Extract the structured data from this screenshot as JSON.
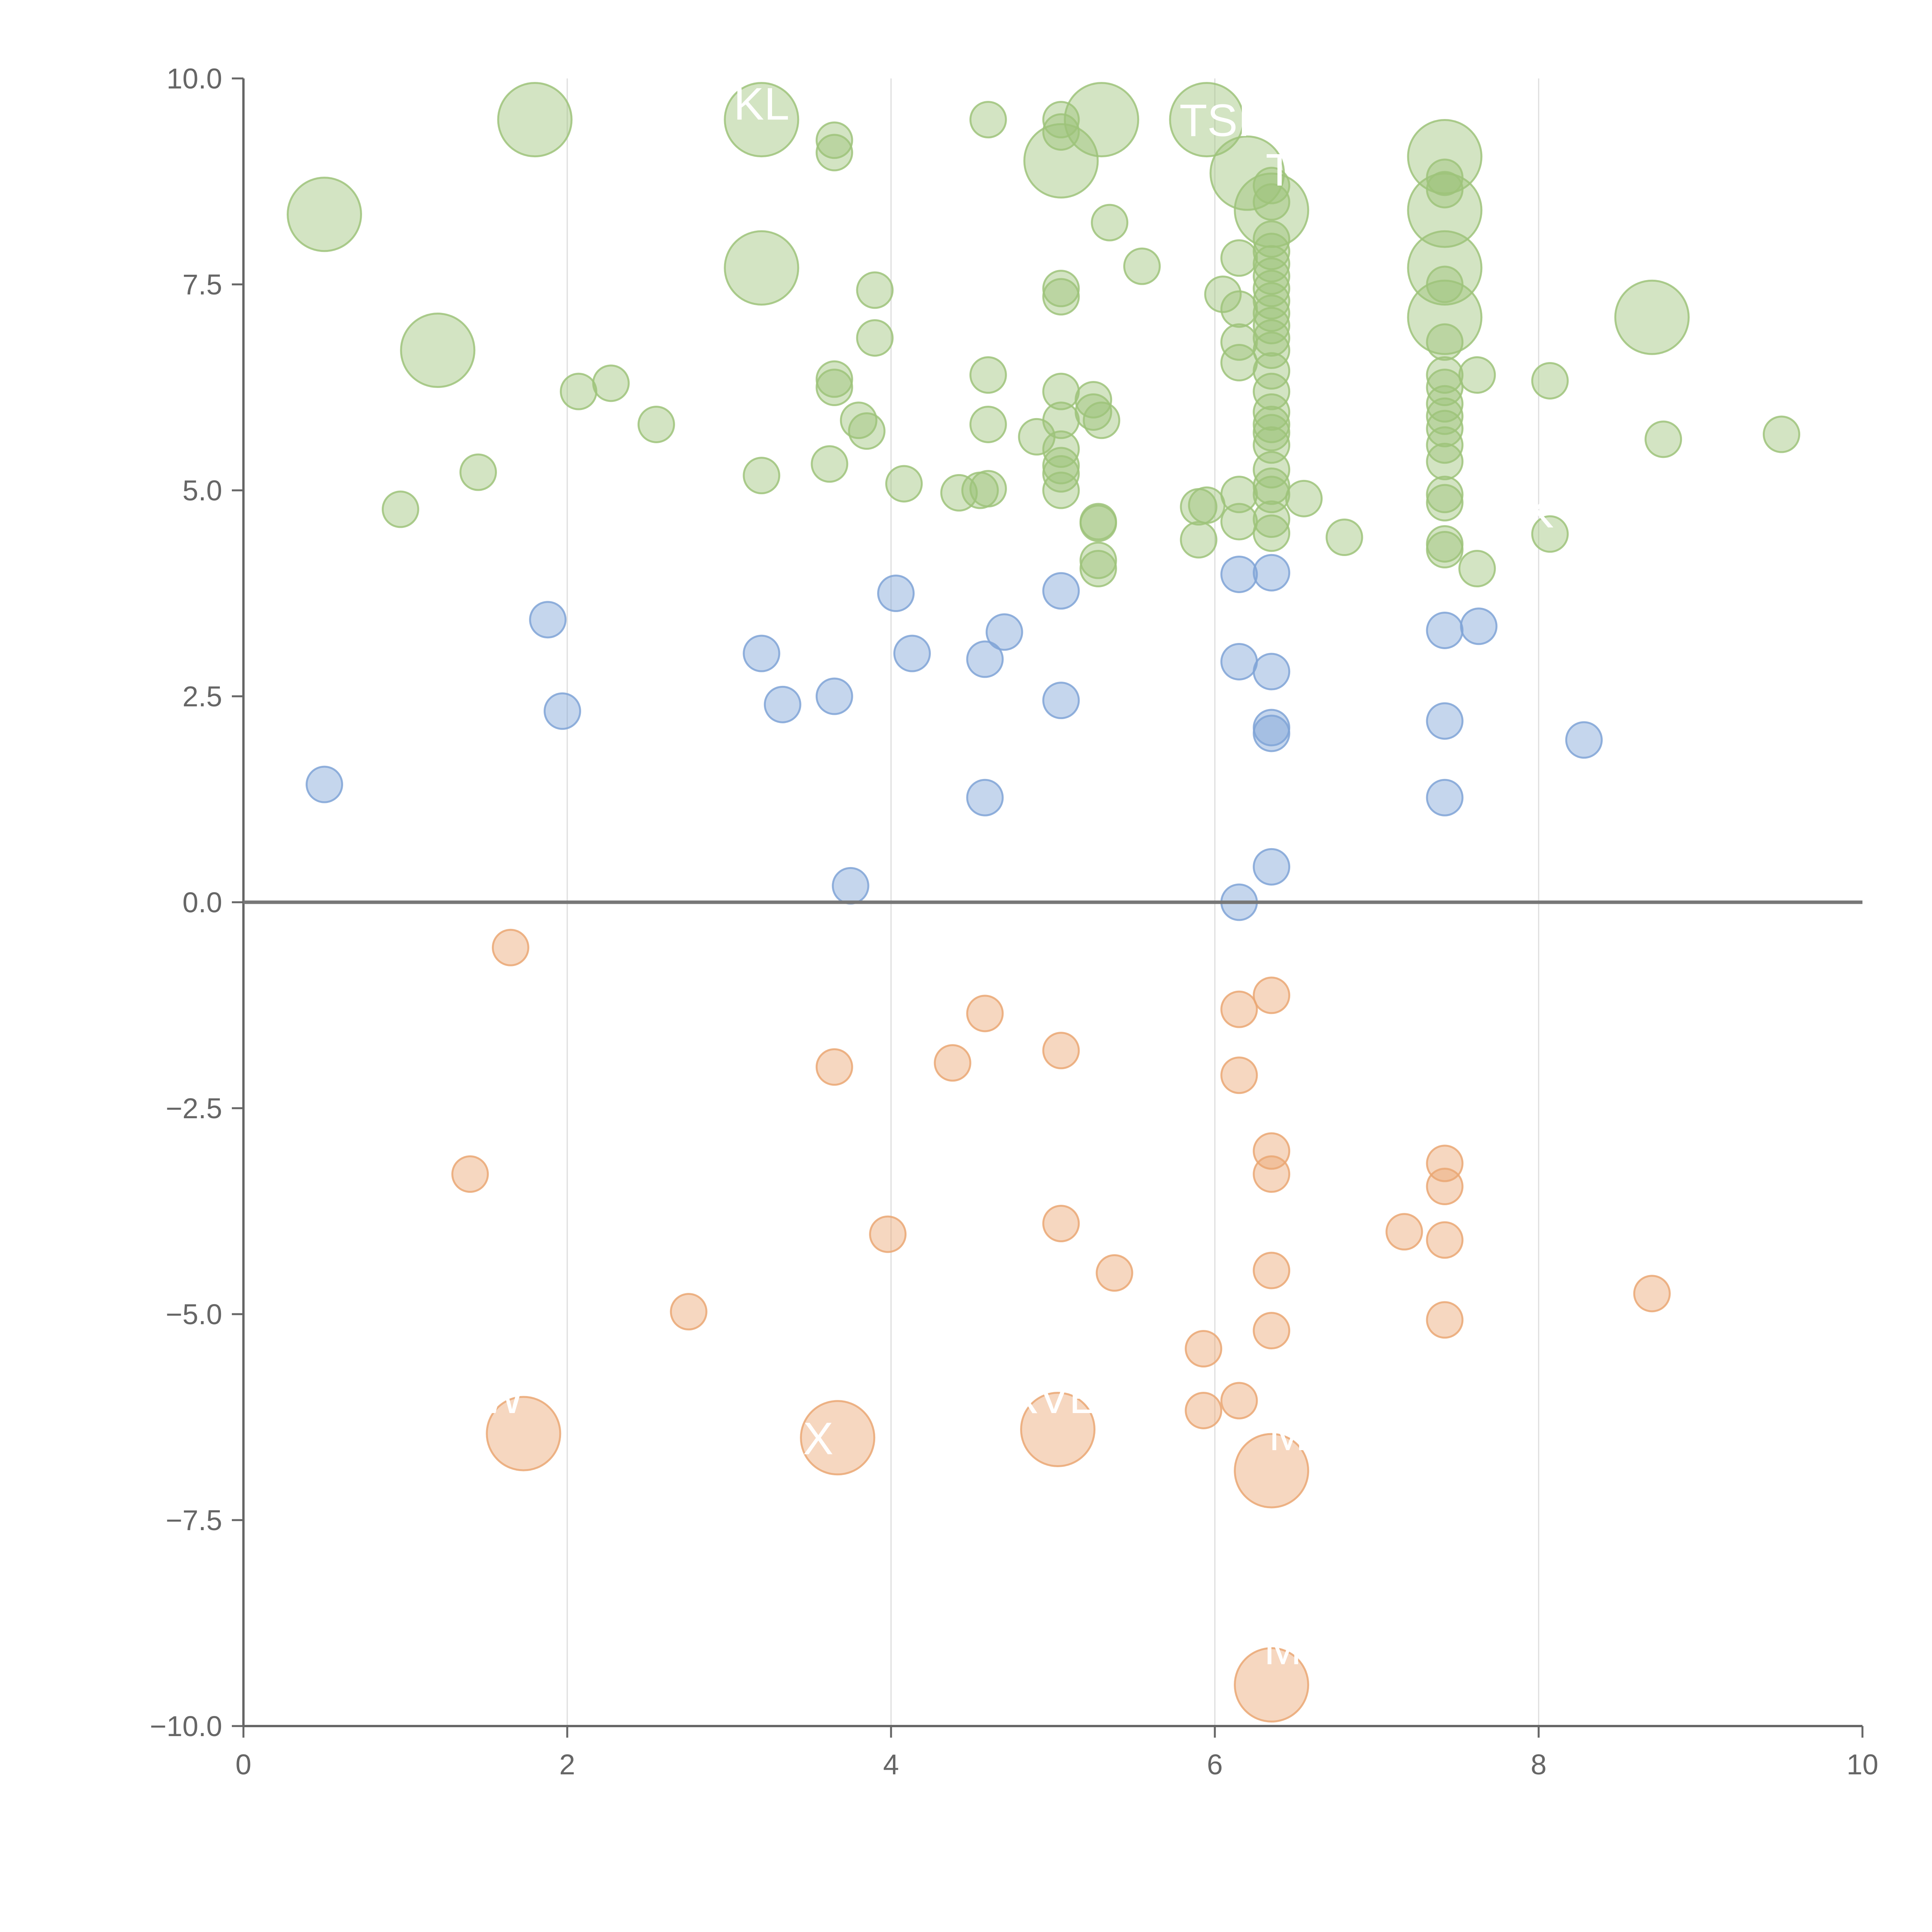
{
  "chart_data": {
    "type": "scatter",
    "title": "",
    "xlabel": "",
    "ylabel": "",
    "xlim": [
      0,
      10
    ],
    "ylim": [
      -10,
      10
    ],
    "grid": "vertical",
    "legend": "none",
    "x_ticks": [
      "0",
      "2",
      "4",
      "6",
      "8",
      "10"
    ],
    "y_ticks": [
      "10.0",
      "7.5",
      "5.0",
      "2.5",
      "0.0",
      "−2.5",
      "−5.0",
      "−7.5",
      "−10.0"
    ],
    "colors": {
      "high": "#9dc37a",
      "mid": "#7fa3d6",
      "low": "#eaa773",
      "zero_line": "#777777",
      "axis": "#666666",
      "grid": "#dddddd",
      "label": "#ffffff"
    },
    "series": [
      {
        "name": "high",
        "color": "#9dc37a",
        "points": [
          {
            "x": 1.8,
            "y": 9.5,
            "size": 3
          },
          {
            "x": 3.2,
            "y": 9.5,
            "size": 3
          },
          {
            "x": 5.3,
            "y": 9.5,
            "size": 3
          },
          {
            "x": 5.95,
            "y": 9.5,
            "size": 3
          },
          {
            "x": 0.5,
            "y": 8.35,
            "size": 3
          },
          {
            "x": 5.05,
            "y": 9.0,
            "size": 3
          },
          {
            "x": 6.2,
            "y": 8.85,
            "size": 3
          },
          {
            "x": 7.42,
            "y": 9.05,
            "size": 3
          },
          {
            "x": 6.35,
            "y": 8.4,
            "size": 3
          },
          {
            "x": 7.42,
            "y": 8.4,
            "size": 3
          },
          {
            "x": 3.2,
            "y": 7.7,
            "size": 3
          },
          {
            "x": 7.42,
            "y": 7.7,
            "size": 3
          },
          {
            "x": 7.42,
            "y": 7.1,
            "size": 3
          },
          {
            "x": 8.7,
            "y": 7.1,
            "size": 3
          },
          {
            "x": 1.2,
            "y": 6.7,
            "size": 3
          },
          {
            "x": 3.65,
            "y": 9.25,
            "size": 1
          },
          {
            "x": 3.65,
            "y": 9.1,
            "size": 1
          },
          {
            "x": 4.6,
            "y": 9.5,
            "size": 1
          },
          {
            "x": 5.05,
            "y": 9.5,
            "size": 1
          },
          {
            "x": 5.05,
            "y": 9.35,
            "size": 1
          },
          {
            "x": 7.42,
            "y": 8.8,
            "size": 1
          },
          {
            "x": 7.42,
            "y": 8.65,
            "size": 1
          },
          {
            "x": 6.35,
            "y": 8.7,
            "size": 1
          },
          {
            "x": 6.35,
            "y": 8.5,
            "size": 1
          },
          {
            "x": 5.35,
            "y": 8.25,
            "size": 1
          },
          {
            "x": 5.55,
            "y": 7.72,
            "size": 1
          },
          {
            "x": 6.15,
            "y": 7.82,
            "size": 1
          },
          {
            "x": 3.9,
            "y": 7.43,
            "size": 1
          },
          {
            "x": 5.05,
            "y": 7.45,
            "size": 1
          },
          {
            "x": 5.05,
            "y": 7.35,
            "size": 1
          },
          {
            "x": 6.05,
            "y": 7.38,
            "size": 1
          },
          {
            "x": 6.15,
            "y": 7.2,
            "size": 1
          },
          {
            "x": 7.42,
            "y": 7.5,
            "size": 1
          },
          {
            "x": 6.35,
            "y": 8.05,
            "size": 1
          },
          {
            "x": 6.35,
            "y": 7.9,
            "size": 1
          },
          {
            "x": 6.35,
            "y": 7.75,
            "size": 1
          },
          {
            "x": 6.35,
            "y": 7.6,
            "size": 1
          },
          {
            "x": 6.35,
            "y": 7.45,
            "size": 1
          },
          {
            "x": 6.35,
            "y": 7.3,
            "size": 1
          },
          {
            "x": 6.35,
            "y": 7.15,
            "size": 1
          },
          {
            "x": 6.35,
            "y": 7.0,
            "size": 1
          },
          {
            "x": 6.35,
            "y": 6.85,
            "size": 1
          },
          {
            "x": 6.35,
            "y": 6.7,
            "size": 1
          },
          {
            "x": 6.15,
            "y": 6.8,
            "size": 1
          },
          {
            "x": 6.15,
            "y": 6.55,
            "size": 1
          },
          {
            "x": 3.9,
            "y": 6.85,
            "size": 1
          },
          {
            "x": 7.42,
            "y": 6.8,
            "size": 1
          },
          {
            "x": 6.35,
            "y": 6.45,
            "size": 1
          },
          {
            "x": 6.35,
            "y": 6.2,
            "size": 1
          },
          {
            "x": 7.42,
            "y": 6.4,
            "size": 1
          },
          {
            "x": 7.42,
            "y": 6.25,
            "size": 1
          },
          {
            "x": 7.62,
            "y": 6.4,
            "size": 1
          },
          {
            "x": 8.07,
            "y": 6.33,
            "size": 1
          },
          {
            "x": 2.07,
            "y": 6.2,
            "size": 1
          },
          {
            "x": 2.27,
            "y": 6.3,
            "size": 1
          },
          {
            "x": 3.65,
            "y": 6.35,
            "size": 1
          },
          {
            "x": 3.65,
            "y": 6.25,
            "size": 1
          },
          {
            "x": 4.6,
            "y": 6.4,
            "size": 1
          },
          {
            "x": 5.05,
            "y": 6.2,
            "size": 1
          },
          {
            "x": 5.25,
            "y": 6.1,
            "size": 1
          },
          {
            "x": 5.25,
            "y": 5.95,
            "size": 1
          },
          {
            "x": 5.3,
            "y": 5.85,
            "size": 1
          },
          {
            "x": 3.8,
            "y": 5.85,
            "size": 1
          },
          {
            "x": 3.85,
            "y": 5.72,
            "size": 1
          },
          {
            "x": 2.55,
            "y": 5.8,
            "size": 1
          },
          {
            "x": 4.6,
            "y": 5.8,
            "size": 1
          },
          {
            "x": 4.9,
            "y": 5.65,
            "size": 1
          },
          {
            "x": 5.05,
            "y": 5.85,
            "size": 1
          },
          {
            "x": 5.05,
            "y": 5.5,
            "size": 1
          },
          {
            "x": 5.05,
            "y": 5.3,
            "size": 1
          },
          {
            "x": 5.05,
            "y": 5.2,
            "size": 1
          },
          {
            "x": 6.35,
            "y": 5.95,
            "size": 1
          },
          {
            "x": 6.35,
            "y": 5.8,
            "size": 1
          },
          {
            "x": 6.35,
            "y": 5.7,
            "size": 1
          },
          {
            "x": 6.35,
            "y": 5.55,
            "size": 1
          },
          {
            "x": 7.42,
            "y": 6.05,
            "size": 1
          },
          {
            "x": 7.42,
            "y": 5.9,
            "size": 1
          },
          {
            "x": 7.42,
            "y": 5.75,
            "size": 1
          },
          {
            "x": 7.42,
            "y": 5.55,
            "size": 1
          },
          {
            "x": 7.42,
            "y": 5.35,
            "size": 1
          },
          {
            "x": 8.77,
            "y": 5.62,
            "size": 1
          },
          {
            "x": 9.5,
            "y": 5.68,
            "size": 1
          },
          {
            "x": 1.45,
            "y": 5.22,
            "size": 1
          },
          {
            "x": 0.97,
            "y": 4.77,
            "size": 1
          },
          {
            "x": 3.2,
            "y": 5.18,
            "size": 1
          },
          {
            "x": 3.62,
            "y": 5.32,
            "size": 1
          },
          {
            "x": 4.08,
            "y": 5.08,
            "size": 1
          },
          {
            "x": 4.42,
            "y": 4.97,
            "size": 1
          },
          {
            "x": 4.55,
            "y": 5.0,
            "size": 1
          },
          {
            "x": 4.6,
            "y": 5.02,
            "size": 1
          },
          {
            "x": 5.05,
            "y": 5.0,
            "size": 1
          },
          {
            "x": 6.35,
            "y": 5.25,
            "size": 1
          },
          {
            "x": 6.35,
            "y": 5.05,
            "size": 1
          },
          {
            "x": 6.35,
            "y": 4.95,
            "size": 1
          },
          {
            "x": 6.15,
            "y": 4.95,
            "size": 1
          },
          {
            "x": 5.9,
            "y": 4.8,
            "size": 1
          },
          {
            "x": 5.95,
            "y": 4.82,
            "size": 1
          },
          {
            "x": 6.55,
            "y": 4.9,
            "size": 1
          },
          {
            "x": 7.42,
            "y": 4.95,
            "size": 1
          },
          {
            "x": 7.42,
            "y": 4.85,
            "size": 1
          },
          {
            "x": 5.28,
            "y": 4.62,
            "size": 1
          },
          {
            "x": 5.28,
            "y": 4.6,
            "size": 1
          },
          {
            "x": 6.15,
            "y": 4.62,
            "size": 1
          },
          {
            "x": 6.35,
            "y": 4.65,
            "size": 1
          },
          {
            "x": 6.35,
            "y": 4.48,
            "size": 1
          },
          {
            "x": 5.9,
            "y": 4.4,
            "size": 1
          },
          {
            "x": 6.8,
            "y": 4.43,
            "size": 1
          },
          {
            "x": 8.07,
            "y": 4.47,
            "size": 1
          },
          {
            "x": 7.42,
            "y": 4.35,
            "size": 1
          },
          {
            "x": 7.42,
            "y": 4.28,
            "size": 1
          },
          {
            "x": 5.28,
            "y": 4.15,
            "size": 1
          },
          {
            "x": 5.28,
            "y": 4.05,
            "size": 1
          },
          {
            "x": 7.62,
            "y": 4.05,
            "size": 1
          }
        ]
      },
      {
        "name": "mid",
        "color": "#7fa3d6",
        "points": [
          {
            "x": 4.03,
            "y": 3.75,
            "size": 1
          },
          {
            "x": 5.05,
            "y": 3.78,
            "size": 1
          },
          {
            "x": 6.15,
            "y": 3.98,
            "size": 1
          },
          {
            "x": 6.35,
            "y": 4.0,
            "size": 1
          },
          {
            "x": 1.88,
            "y": 3.43,
            "size": 1
          },
          {
            "x": 4.7,
            "y": 3.28,
            "size": 1
          },
          {
            "x": 7.42,
            "y": 3.3,
            "size": 1
          },
          {
            "x": 7.63,
            "y": 3.35,
            "size": 1
          },
          {
            "x": 3.2,
            "y": 3.02,
            "size": 1
          },
          {
            "x": 4.13,
            "y": 3.02,
            "size": 1
          },
          {
            "x": 4.58,
            "y": 2.95,
            "size": 1
          },
          {
            "x": 6.15,
            "y": 2.92,
            "size": 1
          },
          {
            "x": 6.35,
            "y": 2.8,
            "size": 1
          },
          {
            "x": 3.65,
            "y": 2.5,
            "size": 1
          },
          {
            "x": 3.33,
            "y": 2.4,
            "size": 1
          },
          {
            "x": 5.05,
            "y": 2.45,
            "size": 1
          },
          {
            "x": 1.97,
            "y": 2.32,
            "size": 1
          },
          {
            "x": 7.42,
            "y": 2.2,
            "size": 1
          },
          {
            "x": 6.35,
            "y": 2.12,
            "size": 1
          },
          {
            "x": 6.35,
            "y": 2.05,
            "size": 1
          },
          {
            "x": 8.28,
            "y": 1.97,
            "size": 1
          },
          {
            "x": 0.5,
            "y": 1.43,
            "size": 1
          },
          {
            "x": 4.58,
            "y": 1.27,
            "size": 1
          },
          {
            "x": 7.42,
            "y": 1.27,
            "size": 1
          },
          {
            "x": 6.35,
            "y": 0.43,
            "size": 1
          },
          {
            "x": 3.75,
            "y": 0.2,
            "size": 1
          },
          {
            "x": 6.15,
            "y": 0.0,
            "size": 1
          }
        ]
      },
      {
        "name": "low",
        "color": "#eaa773",
        "points": [
          {
            "x": 1.65,
            "y": -0.55,
            "size": 1
          },
          {
            "x": 6.35,
            "y": -1.13,
            "size": 1
          },
          {
            "x": 6.15,
            "y": -1.3,
            "size": 1
          },
          {
            "x": 4.58,
            "y": -1.35,
            "size": 1
          },
          {
            "x": 5.05,
            "y": -1.8,
            "size": 1
          },
          {
            "x": 4.38,
            "y": -1.95,
            "size": 1
          },
          {
            "x": 3.65,
            "y": -2.0,
            "size": 1
          },
          {
            "x": 6.15,
            "y": -2.1,
            "size": 1
          },
          {
            "x": 6.35,
            "y": -3.02,
            "size": 1
          },
          {
            "x": 7.42,
            "y": -3.17,
            "size": 1
          },
          {
            "x": 1.4,
            "y": -3.3,
            "size": 1
          },
          {
            "x": 6.35,
            "y": -3.3,
            "size": 1
          },
          {
            "x": 7.42,
            "y": -3.45,
            "size": 1
          },
          {
            "x": 5.05,
            "y": -3.9,
            "size": 1
          },
          {
            "x": 7.17,
            "y": -4.0,
            "size": 1
          },
          {
            "x": 3.98,
            "y": -4.03,
            "size": 1
          },
          {
            "x": 7.42,
            "y": -4.1,
            "size": 1
          },
          {
            "x": 5.38,
            "y": -4.5,
            "size": 1
          },
          {
            "x": 6.35,
            "y": -4.47,
            "size": 1
          },
          {
            "x": 8.7,
            "y": -4.75,
            "size": 1
          },
          {
            "x": 2.75,
            "y": -4.97,
            "size": 1
          },
          {
            "x": 7.42,
            "y": -5.07,
            "size": 1
          },
          {
            "x": 6.35,
            "y": -5.2,
            "size": 1
          },
          {
            "x": 5.93,
            "y": -5.42,
            "size": 1
          },
          {
            "x": 6.15,
            "y": -6.05,
            "size": 1
          },
          {
            "x": 5.93,
            "y": -6.17,
            "size": 1
          },
          {
            "x": 1.73,
            "y": -6.45,
            "size": 3
          },
          {
            "x": 3.67,
            "y": -6.5,
            "size": 3
          },
          {
            "x": 5.03,
            "y": -6.4,
            "size": 3
          },
          {
            "x": 6.35,
            "y": -6.9,
            "size": 3
          },
          {
            "x": 6.35,
            "y": -9.5,
            "size": 3
          }
        ]
      }
    ],
    "labels": [
      {
        "text": "KL",
        "x": 3.2,
        "y": 9.5
      },
      {
        "text": "TSI",
        "x": 6.0,
        "y": 9.3
      },
      {
        "text": "T",
        "x": 6.4,
        "y": 8.7
      },
      {
        "text": "W",
        "x": 1.6,
        "y": -6.2
      },
      {
        "text": "RVE",
        "x": 5.0,
        "y": -6.2
      },
      {
        "text": "X",
        "x": 3.55,
        "y": -6.7
      },
      {
        "text": "M",
        "x": 6.45,
        "y": -6.65
      },
      {
        "text": "M",
        "x": 6.42,
        "y": -9.25
      },
      {
        "text": "K",
        "x": 8.0,
        "y": 4.55
      }
    ]
  }
}
